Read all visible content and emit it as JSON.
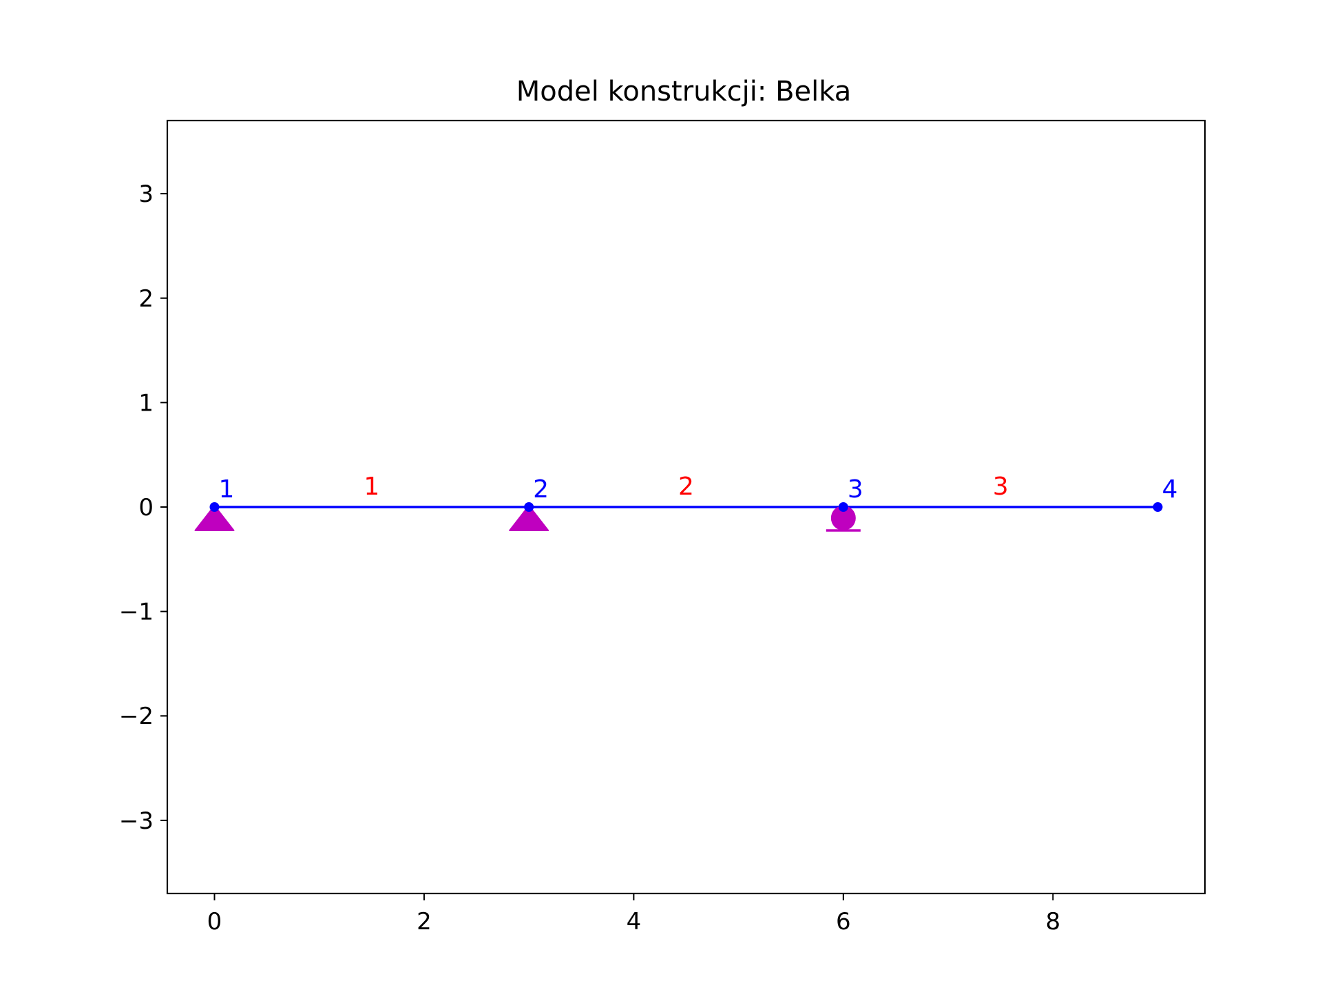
{
  "chart_data": {
    "type": "structural-model",
    "title": "Model konstrukcji: Belka",
    "xlabel": "",
    "ylabel": "",
    "xlim": [
      -0.45,
      9.45
    ],
    "ylim": [
      -3.7,
      3.7
    ],
    "xticks": [
      0,
      2,
      4,
      6,
      8
    ],
    "yticks": [
      -3,
      -2,
      -1,
      0,
      1,
      2,
      3
    ],
    "xtick_labels": [
      "0",
      "2",
      "4",
      "6",
      "8"
    ],
    "ytick_labels": [
      "−3",
      "−2",
      "−1",
      "0",
      "1",
      "2",
      "3"
    ],
    "grid": false,
    "colors": {
      "beam": "#0000ff",
      "node_label": "#0000ff",
      "element_label": "#ff0000",
      "support": "#bf00bf"
    },
    "nodes": [
      {
        "id": "1",
        "x": 0,
        "y": 0
      },
      {
        "id": "2",
        "x": 3,
        "y": 0
      },
      {
        "id": "3",
        "x": 6,
        "y": 0
      },
      {
        "id": "4",
        "x": 9,
        "y": 0
      }
    ],
    "elements": [
      {
        "id": "1",
        "from": 0,
        "to": 1
      },
      {
        "id": "2",
        "from": 1,
        "to": 2
      },
      {
        "id": "3",
        "from": 2,
        "to": 3
      }
    ],
    "supports": [
      {
        "node": 0,
        "type": "pinned"
      },
      {
        "node": 1,
        "type": "pinned"
      },
      {
        "node": 2,
        "type": "roller"
      }
    ]
  }
}
